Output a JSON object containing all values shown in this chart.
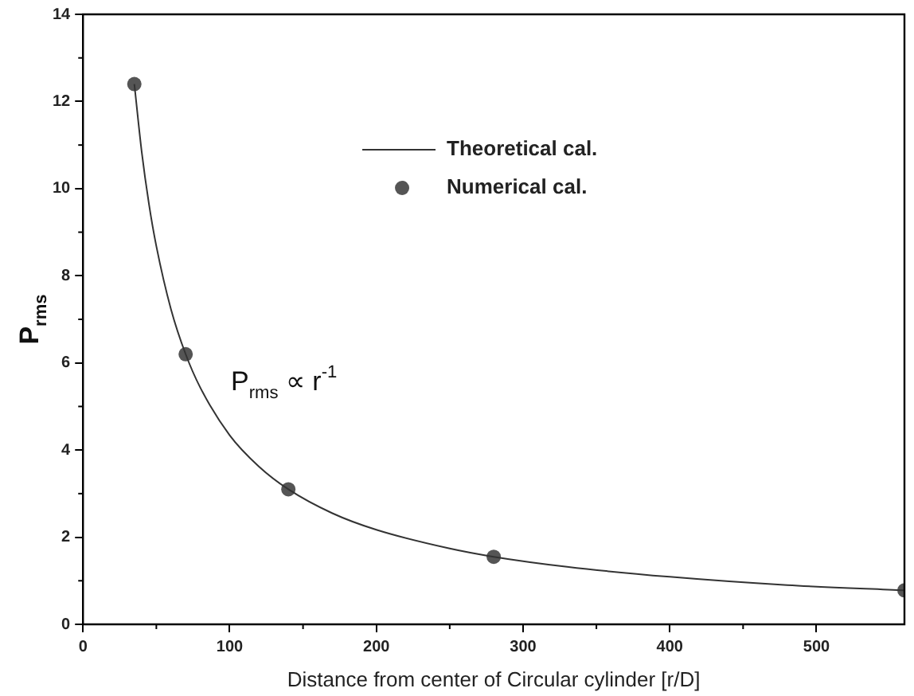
{
  "chart_data": {
    "type": "line",
    "xlabel": "Distance from center of Circular cylinder [r/D]",
    "ylabel": "P$_{rms}$",
    "xlim": [
      0,
      560
    ],
    "xticks": [
      0,
      100,
      200,
      300,
      400,
      500
    ],
    "ylim": [
      0,
      14
    ],
    "yticks": [
      0,
      2,
      4,
      6,
      8,
      10,
      12,
      14
    ],
    "grid": false,
    "legend": "top right",
    "series": [
      {
        "name": "Theoretical cal.",
        "color": "#333333",
        "marker": "none",
        "line_style": "solid",
        "x": [
          35,
          40,
          45,
          50,
          60,
          70,
          80,
          100,
          120,
          140,
          170,
          200,
          250,
          280,
          330,
          400,
          480,
          560
        ],
        "values": [
          12.4,
          10.85,
          9.64,
          8.68,
          7.23,
          6.2,
          5.43,
          4.34,
          3.62,
          3.1,
          2.55,
          2.17,
          1.74,
          1.55,
          1.32,
          1.09,
          0.9,
          0.78
        ]
      },
      {
        "name": "Numerical cal.",
        "type": "scatter",
        "color": "#555555",
        "marker": "circle",
        "x": [
          35,
          70,
          140,
          280,
          560
        ],
        "values": [
          12.4,
          6.2,
          3.1,
          1.55,
          0.78
        ]
      }
    ],
    "annotations": [
      "P$_{rms}$ ∝ r$^{-1}$"
    ]
  }
}
